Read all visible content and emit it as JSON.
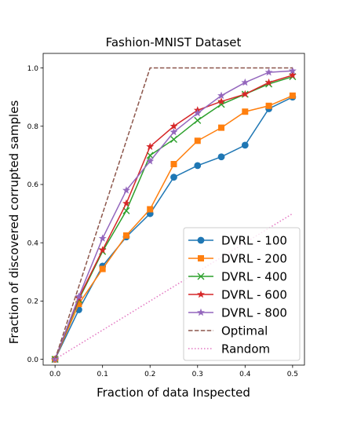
{
  "chart_data": {
    "type": "line",
    "title": "Fashion-MNIST Dataset",
    "xlabel": "Fraction of data Inspected",
    "ylabel": "Fraction of discovered corrupted samples",
    "xlim": [
      -0.025,
      0.525
    ],
    "ylim": [
      -0.02,
      1.05
    ],
    "xticks": [
      0.0,
      0.1,
      0.2,
      0.3,
      0.4,
      0.5
    ],
    "xtick_labels": [
      "0.0",
      "0.1",
      "0.2",
      "0.3",
      "0.4",
      "0.5"
    ],
    "yticks": [
      0.0,
      0.2,
      0.4,
      0.6,
      0.8,
      1.0
    ],
    "ytick_labels": [
      "0.0",
      "0.2",
      "0.4",
      "0.6",
      "0.8",
      "1.0"
    ],
    "grid": false,
    "legend_position": "bottom-right",
    "x": [
      0.0,
      0.05,
      0.1,
      0.15,
      0.2,
      0.25,
      0.3,
      0.35,
      0.4,
      0.45,
      0.5
    ],
    "series": [
      {
        "name": "DVRL - 100",
        "color": "#1f77b4",
        "marker": "circle",
        "line": "solid",
        "values": [
          0.0,
          0.17,
          0.32,
          0.42,
          0.5,
          0.625,
          0.665,
          0.695,
          0.735,
          0.86,
          0.9
        ]
      },
      {
        "name": "DVRL - 200",
        "color": "#ff7f0e",
        "marker": "square",
        "line": "solid",
        "values": [
          0.0,
          0.19,
          0.31,
          0.425,
          0.515,
          0.67,
          0.75,
          0.795,
          0.85,
          0.87,
          0.905
        ]
      },
      {
        "name": "DVRL - 400",
        "color": "#2ca02c",
        "marker": "x",
        "line": "solid",
        "values": [
          0.0,
          0.205,
          0.37,
          0.51,
          0.7,
          0.755,
          0.82,
          0.875,
          0.91,
          0.945,
          0.97
        ]
      },
      {
        "name": "DVRL - 600",
        "color": "#d62728",
        "marker": "star",
        "line": "solid",
        "values": [
          0.0,
          0.21,
          0.375,
          0.535,
          0.73,
          0.8,
          0.855,
          0.885,
          0.91,
          0.95,
          0.975
        ]
      },
      {
        "name": "DVRL - 800",
        "color": "#9467bd",
        "marker": "star",
        "line": "solid",
        "values": [
          0.0,
          0.215,
          0.415,
          0.58,
          0.68,
          0.78,
          0.845,
          0.905,
          0.95,
          0.985,
          0.99
        ]
      },
      {
        "name": "Optimal",
        "color": "#8c564b",
        "marker": "none",
        "line": "dashed",
        "x": [
          0.0,
          0.2,
          0.5
        ],
        "values": [
          0.0,
          1.0,
          1.0
        ]
      },
      {
        "name": "Random",
        "color": "#e377c2",
        "marker": "none",
        "line": "dotted",
        "x": [
          0.0,
          0.5
        ],
        "values": [
          0.0,
          0.5
        ]
      }
    ]
  }
}
